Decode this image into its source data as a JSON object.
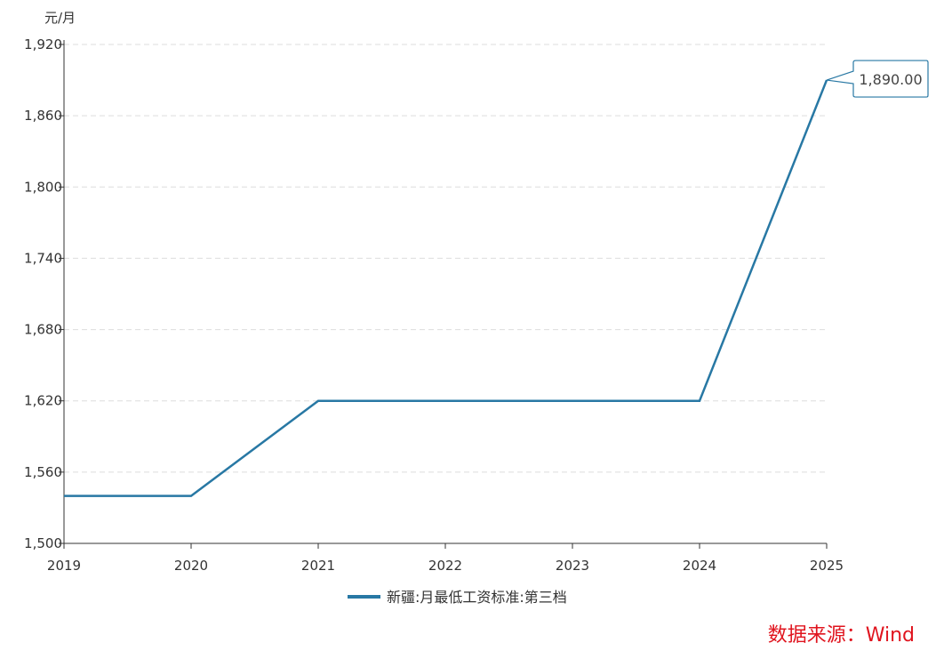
{
  "chart_data": {
    "type": "line",
    "title": "",
    "ylabel": "元/月",
    "xlabel": "",
    "categories": [
      "2019",
      "2020",
      "2021",
      "2022",
      "2023",
      "2024",
      "2025"
    ],
    "series": [
      {
        "name": "新疆:月最低工资标准:第三档",
        "values": [
          1540,
          1540,
          1620,
          1620,
          1620,
          1620,
          1890
        ],
        "color": "#2878a4"
      }
    ],
    "ylim": [
      1500,
      1920
    ],
    "yticks": [
      1500,
      1560,
      1620,
      1680,
      1740,
      1800,
      1860,
      1920
    ],
    "ytick_labels": [
      "1,500",
      "1,560",
      "1,620",
      "1,680",
      "1,740",
      "1,800",
      "1,860",
      "1,920"
    ],
    "grid": true,
    "legend": "bottom-center",
    "annotation": {
      "category": "2025",
      "text": "1,890.00"
    }
  },
  "source": "数据来源：Wind"
}
